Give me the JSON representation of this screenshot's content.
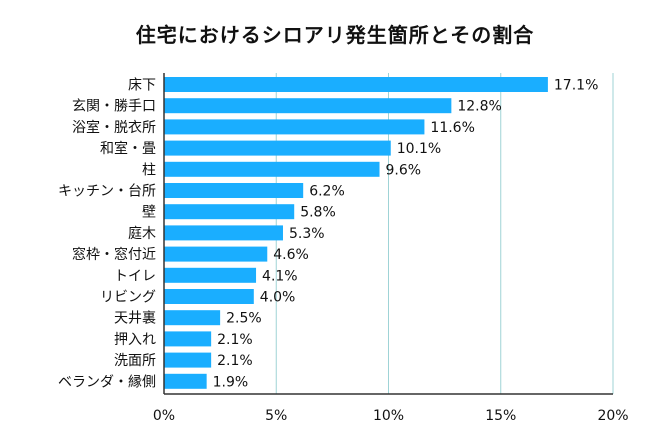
{
  "chart_data": {
    "type": "bar",
    "orientation": "horizontal",
    "title": "住宅におけるシロアリ発生箇所とその割合",
    "xlabel": "",
    "ylabel": "",
    "xlim": [
      0,
      20
    ],
    "x_ticks": [
      "0%",
      "5%",
      "10%",
      "15%",
      "20%"
    ],
    "x_tick_values": [
      0,
      5,
      10,
      15,
      20
    ],
    "grid": true,
    "bar_color": "#1aaeff",
    "categories": [
      "床下",
      "玄関・勝手口",
      "浴室・脱衣所",
      "和室・畳",
      "柱",
      "キッチン・台所",
      "壁",
      "庭木",
      "窓枠・窓付近",
      "トイレ",
      "リビング",
      "天井裏",
      "押入れ",
      "洗面所",
      "ベランダ・縁側"
    ],
    "values": [
      17.1,
      12.8,
      11.6,
      10.1,
      9.6,
      6.2,
      5.8,
      5.3,
      4.6,
      4.1,
      4.0,
      2.5,
      2.1,
      2.1,
      1.9
    ],
    "value_labels": [
      "17.1%",
      "12.8%",
      "11.6%",
      "10.1%",
      "9.6%",
      "6.2%",
      "5.8%",
      "5.3%",
      "4.6%",
      "4.1%",
      "4.0%",
      "2.5%",
      "2.1%",
      "2.1%",
      "1.9%"
    ]
  },
  "colors": {
    "highlight": "#fff23a",
    "grid": "#9fd3d6",
    "axis": "#333333"
  }
}
